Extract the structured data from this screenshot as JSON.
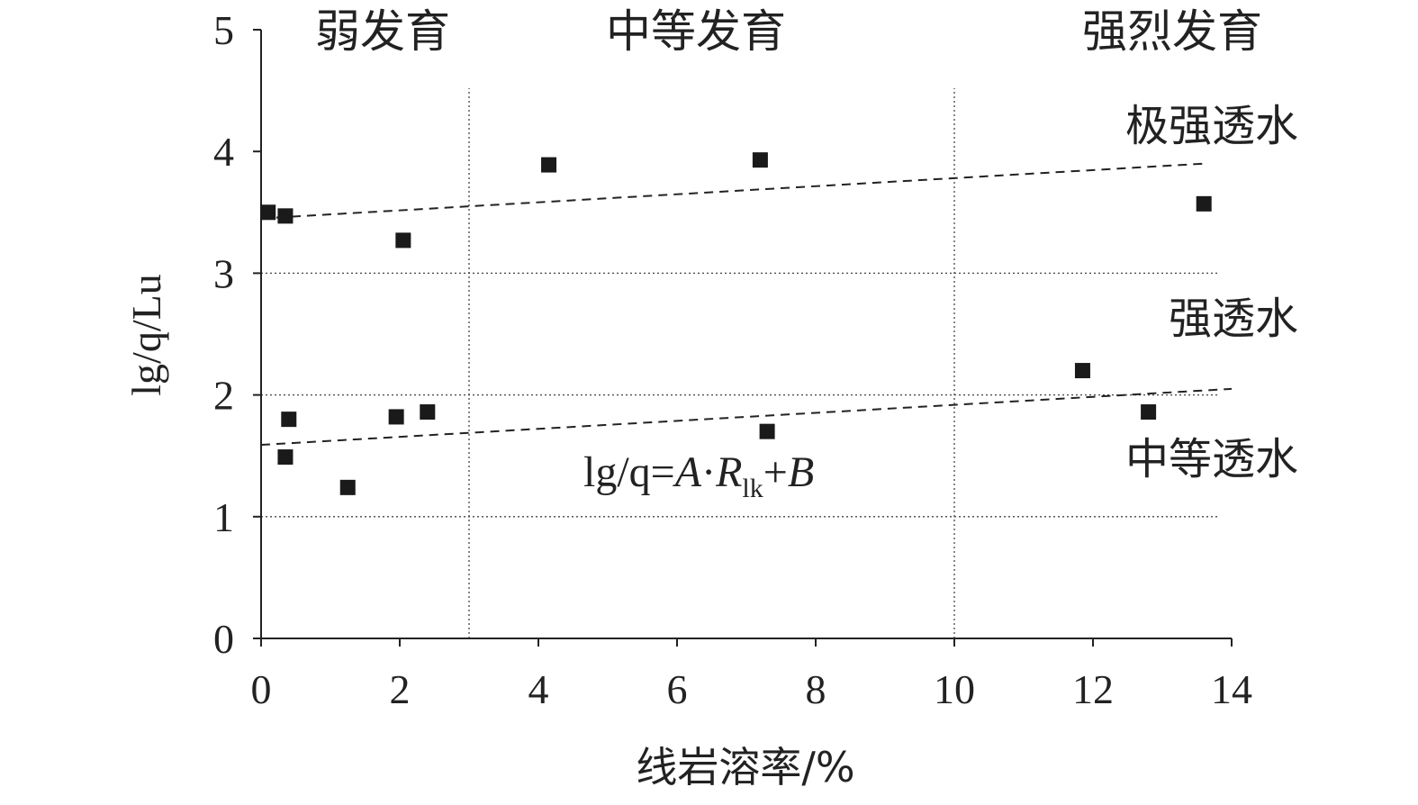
{
  "chart_data": {
    "type": "scatter",
    "xlabel": "线岩溶率/%",
    "ylabel": "lg/q/Lu",
    "xlim": [
      0,
      14
    ],
    "ylim": [
      0,
      5
    ],
    "x_ticks": [
      "0",
      "2",
      "4",
      "6",
      "8",
      "10",
      "12",
      "14"
    ],
    "y_ticks": [
      "0",
      "1",
      "2",
      "3",
      "4",
      "5"
    ],
    "series": [
      {
        "marker": "square",
        "color": "#1a1a1a",
        "points": [
          {
            "x": 0.1,
            "y": 3.5
          },
          {
            "x": 0.35,
            "y": 3.47
          },
          {
            "x": 2.05,
            "y": 3.27
          },
          {
            "x": 4.15,
            "y": 3.89
          },
          {
            "x": 7.2,
            "y": 3.93
          },
          {
            "x": 13.6,
            "y": 3.57
          },
          {
            "x": 0.4,
            "y": 1.8
          },
          {
            "x": 0.35,
            "y": 1.49
          },
          {
            "x": 1.25,
            "y": 1.24
          },
          {
            "x": 1.95,
            "y": 1.82
          },
          {
            "x": 2.4,
            "y": 1.86
          },
          {
            "x": 7.3,
            "y": 1.7
          },
          {
            "x": 11.85,
            "y": 2.2
          },
          {
            "x": 12.8,
            "y": 1.86
          }
        ]
      }
    ],
    "trend_lines": [
      {
        "style": "dashed",
        "x": [
          0.0,
          13.6
        ],
        "y": [
          3.45,
          3.9
        ]
      },
      {
        "style": "dashed",
        "x": [
          0.0,
          14.0
        ],
        "y": [
          1.59,
          2.05
        ]
      }
    ],
    "reference_lines": {
      "horizontal_y": [
        1,
        2,
        3
      ],
      "vertical_x": [
        3,
        10
      ],
      "style": "dotted"
    },
    "annotations": {
      "development_zones": [
        "弱发育",
        "中等发育",
        "强烈发育"
      ],
      "permeability_zones": [
        "极强透水",
        "强透水",
        "中等透水"
      ],
      "equation": {
        "prefix": "lg/q=",
        "A": "A",
        "dot": "·",
        "R": "R",
        "sub": "lk",
        "plus": "+",
        "B": "B"
      }
    },
    "grid": false,
    "legend": "none"
  }
}
